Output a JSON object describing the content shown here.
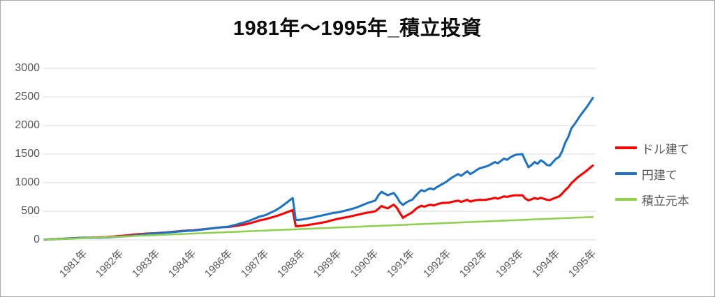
{
  "chart_data": {
    "type": "line",
    "title": "1981年～1995年_積立投資",
    "legend_position": "right",
    "grid": true,
    "x_unit": "month",
    "x_tick_labels": [
      "1981年",
      "1982年",
      "1983年",
      "1984年",
      "1986年",
      "1987年",
      "1988年",
      "1989年",
      "1990年",
      "1991年",
      "1992年",
      "1992年",
      "1993年",
      "1994年",
      "1995年"
    ],
    "y_axis": {
      "ticks": [
        0,
        500,
        1000,
        1500,
        2000,
        2500,
        3000
      ],
      "range": [
        0,
        3000
      ]
    },
    "colors": {
      "dollar": "#fe0000",
      "yen": "#1b74c5",
      "principal": "#92d050",
      "grid": "#d9d9d9",
      "axis_text": "#595959"
    },
    "series": [
      {
        "name": "ドル建て",
        "color": "#fe0000",
        "values": [
          2,
          5,
          8,
          11,
          14,
          17,
          19,
          22,
          25,
          28,
          31,
          34,
          36,
          38,
          38,
          38,
          40,
          42,
          44,
          46,
          48,
          52,
          56,
          60,
          66,
          70,
          74,
          79,
          84,
          90,
          95,
          100,
          104,
          108,
          111,
          113,
          115,
          119,
          123,
          127,
          131,
          136,
          141,
          146,
          151,
          156,
          160,
          163,
          165,
          170,
          175,
          180,
          186,
          192,
          198,
          204,
          210,
          215,
          220,
          223,
          225,
          232,
          240,
          248,
          257,
          266,
          276,
          290,
          305,
          320,
          338,
          350,
          360,
          375,
          390,
          405,
          422,
          440,
          460,
          480,
          500,
          520,
          235,
          240,
          245,
          252,
          260,
          268,
          276,
          285,
          295,
          305,
          315,
          330,
          345,
          358,
          370,
          380,
          390,
          400,
          412,
          424,
          436,
          448,
          460,
          472,
          480,
          490,
          500,
          545,
          590,
          570,
          550,
          585,
          615,
          560,
          470,
          385,
          420,
          450,
          480,
          530,
          570,
          595,
          580,
          600,
          615,
          600,
          620,
          635,
          645,
          648,
          650,
          665,
          675,
          685,
          665,
          680,
          700,
          670,
          685,
          695,
          700,
          698,
          700,
          710,
          720,
          735,
          720,
          740,
          760,
          750,
          765,
          775,
          780,
          778,
          780,
          720,
          690,
          710,
          730,
          715,
          735,
          720,
          700,
          695,
          720,
          740,
          760,
          810,
          870,
          920,
          990,
          1040,
          1090,
          1130,
          1170,
          1210,
          1255,
          1300
        ]
      },
      {
        "name": "円建て",
        "color": "#1b74c5",
        "values": [
          2,
          5,
          8,
          10,
          13,
          16,
          18,
          21,
          24,
          27,
          30,
          33,
          35,
          36,
          35,
          34,
          36,
          37,
          38,
          40,
          41,
          44,
          47,
          51,
          55,
          58,
          61,
          65,
          70,
          75,
          80,
          86,
          92,
          98,
          104,
          108,
          112,
          116,
          120,
          124,
          128,
          132,
          136,
          141,
          146,
          150,
          155,
          158,
          160,
          166,
          172,
          178,
          184,
          190,
          196,
          202,
          209,
          216,
          222,
          226,
          230,
          244,
          258,
          272,
          288,
          304,
          320,
          338,
          358,
          380,
          404,
          418,
          430,
          455,
          480,
          505,
          535,
          570,
          610,
          650,
          690,
          730,
          345,
          350,
          355,
          365,
          375,
          385,
          395,
          410,
          420,
          432,
          444,
          456,
          468,
          475,
          482,
          495,
          508,
          522,
          536,
          550,
          568,
          590,
          612,
          634,
          656,
          670,
          690,
          780,
          840,
          810,
          780,
          800,
          820,
          750,
          660,
          610,
          650,
          680,
          700,
          760,
          820,
          870,
          850,
          880,
          900,
          880,
          920,
          950,
          980,
          1010,
          1050,
          1090,
          1120,
          1150,
          1120,
          1160,
          1200,
          1150,
          1180,
          1220,
          1250,
          1265,
          1280,
          1300,
          1330,
          1360,
          1340,
          1380,
          1420,
          1400,
          1440,
          1470,
          1490,
          1495,
          1500,
          1380,
          1270,
          1310,
          1360,
          1330,
          1390,
          1360,
          1310,
          1300,
          1360,
          1420,
          1450,
          1550,
          1700,
          1800,
          1950,
          2020,
          2100,
          2180,
          2250,
          2320,
          2400,
          2480
        ]
      },
      {
        "name": "積立元本",
        "color": "#92d050",
        "values": [
          2,
          4,
          7,
          9,
          11,
          13,
          16,
          18,
          20,
          22,
          24,
          27,
          29,
          31,
          33,
          36,
          38,
          40,
          42,
          44,
          47,
          49,
          51,
          53,
          56,
          58,
          60,
          62,
          64,
          67,
          69,
          71,
          73,
          76,
          78,
          80,
          82,
          84,
          87,
          89,
          91,
          93,
          96,
          98,
          100,
          102,
          104,
          107,
          109,
          111,
          113,
          116,
          118,
          120,
          122,
          124,
          127,
          129,
          131,
          133,
          136,
          138,
          140,
          142,
          144,
          147,
          149,
          151,
          153,
          156,
          158,
          160,
          162,
          164,
          167,
          169,
          171,
          173,
          176,
          178,
          180,
          182,
          184,
          187,
          189,
          191,
          193,
          196,
          198,
          200,
          202,
          204,
          207,
          209,
          211,
          213,
          216,
          218,
          220,
          222,
          224,
          227,
          229,
          231,
          233,
          236,
          238,
          240,
          242,
          244,
          247,
          249,
          251,
          253,
          256,
          258,
          260,
          262,
          264,
          267,
          269,
          271,
          273,
          276,
          278,
          280,
          282,
          284,
          287,
          289,
          291,
          293,
          296,
          298,
          300,
          302,
          304,
          307,
          309,
          311,
          313,
          316,
          318,
          320,
          322,
          324,
          327,
          329,
          331,
          333,
          336,
          338,
          340,
          342,
          344,
          347,
          349,
          351,
          353,
          356,
          358,
          360,
          362,
          364,
          367,
          369,
          371,
          373,
          376,
          378,
          380,
          382,
          384,
          387,
          389,
          391,
          393,
          396,
          398,
          400
        ]
      }
    ]
  }
}
